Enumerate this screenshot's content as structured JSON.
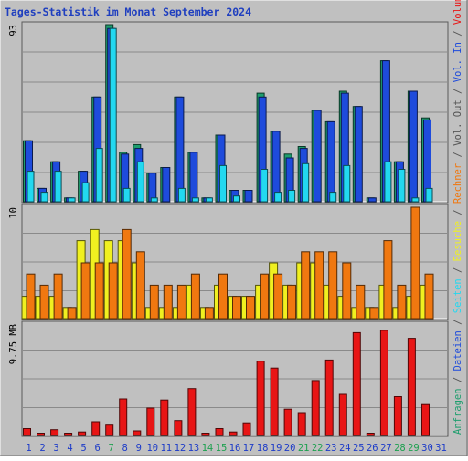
{
  "chart_data": {
    "type": "bar",
    "title": "Tages-Statistik im Monat September 2024",
    "categories": [
      "1",
      "2",
      "3",
      "4",
      "5",
      "6",
      "7",
      "8",
      "9",
      "10",
      "11",
      "12",
      "13",
      "14",
      "15",
      "16",
      "17",
      "18",
      "19",
      "20",
      "21",
      "22",
      "23",
      "24",
      "25",
      "26",
      "27",
      "28",
      "29",
      "30",
      "31"
    ],
    "weekend_days": [
      "7",
      "14",
      "15",
      "21",
      "22",
      "28",
      "29"
    ],
    "panels": [
      {
        "id": "top",
        "ymax_label": "93",
        "ylim": [
          0,
          93
        ],
        "series": [
          {
            "name": "Anfragen",
            "color": "#1e9e6e",
            "values": [
              32,
              7,
              21,
              2,
              16,
              55,
              93,
              26,
              30,
              15,
              18,
              55,
              26,
              2,
              35,
              6,
              6,
              57,
              37,
              25,
              29,
              48,
              42,
              58,
              50,
              2,
              74,
              21,
              58,
              44,
              null
            ]
          },
          {
            "name": "Dateien",
            "color": "#1e4bdc",
            "values": [
              32,
              7,
              21,
              2,
              16,
              55,
              91,
              25,
              28,
              15,
              18,
              55,
              26,
              2,
              35,
              6,
              6,
              55,
              37,
              23,
              28,
              48,
              42,
              57,
              50,
              2,
              74,
              21,
              58,
              43,
              null
            ]
          },
          {
            "name": "Seiten",
            "color": "#22d8f0",
            "values": [
              16,
              5,
              16,
              2,
              10,
              28,
              91,
              7,
              21,
              2,
              0,
              7,
              2,
              2,
              19,
              3,
              0,
              17,
              5,
              6,
              20,
              0,
              5,
              19,
              0,
              0,
              21,
              17,
              2,
              7,
              null
            ]
          }
        ]
      },
      {
        "id": "middle",
        "ymax_label": "10",
        "ylim": [
          0,
          10
        ],
        "series": [
          {
            "name": "Besuche",
            "color": "#f0f020",
            "values": [
              2,
              2,
              2,
              1,
              7,
              8,
              7,
              7,
              5,
              1,
              1,
              1,
              3,
              1,
              3,
              2,
              2,
              3,
              5,
              3,
              5,
              5,
              3,
              2,
              1,
              1,
              3,
              1,
              2,
              3,
              null
            ]
          },
          {
            "name": "Rechner",
            "color": "#f07810",
            "values": [
              4,
              3,
              4,
              1,
              5,
              5,
              5,
              8,
              6,
              3,
              3,
              3,
              4,
              1,
              4,
              2,
              2,
              4,
              4,
              3,
              6,
              6,
              6,
              5,
              3,
              1,
              7,
              3,
              10,
              4,
              null
            ]
          }
        ]
      },
      {
        "id": "bottom",
        "ymax_label": "9.75 MB",
        "ylim": [
          0,
          9.75
        ],
        "series": [
          {
            "name": "Volumen",
            "color": "#e81515",
            "values": [
              0.6,
              0.2,
              0.5,
              0.2,
              0.3,
              1.2,
              0.9,
              3.2,
              0.4,
              2.4,
              3.1,
              1.3,
              4.1,
              0.2,
              0.6,
              0.3,
              1.1,
              6.5,
              5.9,
              2.3,
              2.0,
              4.8,
              6.6,
              3.6,
              9.0,
              0.2,
              9.2,
              3.4,
              8.5,
              2.7,
              null
            ]
          }
        ]
      }
    ],
    "right_legend": [
      {
        "label": "Anfragen",
        "color": "#1e9e6e"
      },
      {
        "sep": " / ",
        "label": "Dateien",
        "color": "#1e4bdc"
      },
      {
        "sep": " / ",
        "label": "Seiten",
        "color": "#22d8f0"
      },
      {
        "sep": " / ",
        "label": "Besuche",
        "color": "#f0f020"
      },
      {
        "sep": " / ",
        "label": "Rechner",
        "color": "#f07810"
      },
      {
        "sep": " / ",
        "label": "Vol. Out",
        "color": "#555555"
      },
      {
        "sep": " / ",
        "label": "Vol. In",
        "color": "#1e4bdc"
      },
      {
        "sep": " / ",
        "label": "Volumen",
        "color": "#e81515"
      }
    ],
    "colors": {
      "background": "#c0c0c0",
      "title": "#1f3fbf",
      "weekday_label": "#1e3cc8",
      "weekend_label": "#1ea050",
      "separator": "#555555"
    }
  }
}
